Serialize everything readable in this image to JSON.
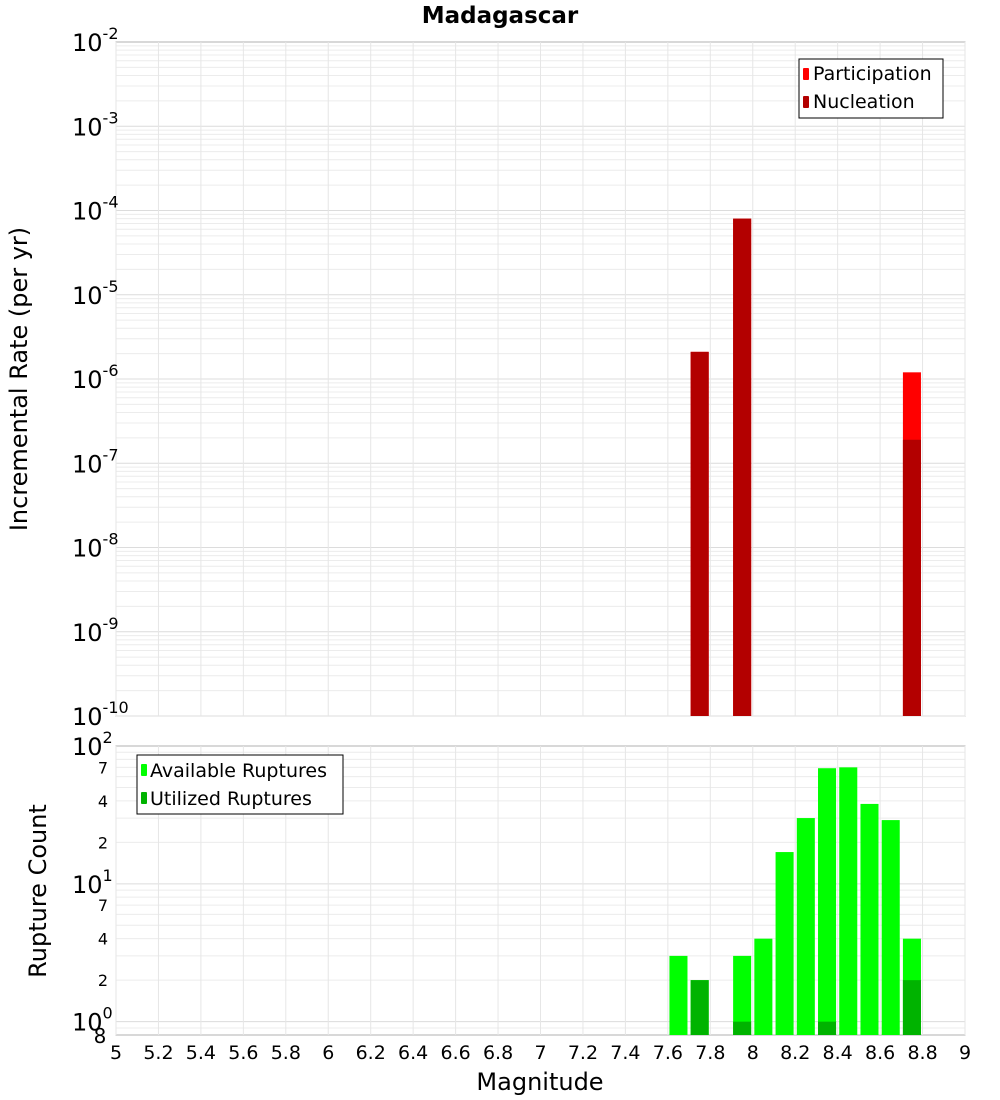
{
  "chart_data": [
    {
      "type": "bar",
      "title": "Madagascar",
      "ylabel": "Incremental Rate (per yr)",
      "xlabel": "",
      "xlim": [
        5,
        9
      ],
      "ylim": [
        1e-10,
        0.01
      ],
      "yscale": "log",
      "y_tick_labels": [
        {
          "base": "10",
          "exp": "-10",
          "value": 1e-10
        },
        {
          "base": "10",
          "exp": "-9",
          "value": 1e-09
        },
        {
          "base": "10",
          "exp": "-8",
          "value": 1e-08
        },
        {
          "base": "10",
          "exp": "-7",
          "value": 1e-07
        },
        {
          "base": "10",
          "exp": "-6",
          "value": 1e-06
        },
        {
          "base": "10",
          "exp": "-5",
          "value": 1e-05
        },
        {
          "base": "10",
          "exp": "-4",
          "value": 0.0001
        },
        {
          "base": "10",
          "exp": "-3",
          "value": 0.001
        },
        {
          "base": "10",
          "exp": "-2",
          "value": 0.01
        }
      ],
      "legend_position": "top-right",
      "grid": true,
      "series": [
        {
          "name": "Participation",
          "color": "#ff0000",
          "points": [
            {
              "x": 7.75,
              "y": 2.1e-06
            },
            {
              "x": 7.95,
              "y": 8e-05
            },
            {
              "x": 8.75,
              "y": 1.2e-06
            }
          ]
        },
        {
          "name": "Nucleation",
          "color": "#b30000",
          "points": [
            {
              "x": 7.75,
              "y": 2.1e-06
            },
            {
              "x": 7.95,
              "y": 8e-05
            },
            {
              "x": 8.75,
              "y": 1.9e-07
            }
          ]
        }
      ]
    },
    {
      "type": "bar",
      "title": "",
      "ylabel": "Rupture Count",
      "xlabel": "Magnitude",
      "xlim": [
        5,
        9
      ],
      "ylim": [
        0.8,
        100
      ],
      "yscale": "log",
      "x_ticks": [
        "5",
        "5.2",
        "5.4",
        "5.6",
        "5.8",
        "6",
        "6.2",
        "6.4",
        "6.6",
        "6.8",
        "7",
        "7.2",
        "7.4",
        "7.6",
        "7.8",
        "8",
        "8.2",
        "8.4",
        "8.6",
        "8.8",
        "9"
      ],
      "y_major_labels": [
        {
          "base": "10",
          "exp": "0",
          "value": 1
        },
        {
          "base": "10",
          "exp": "1",
          "value": 10
        },
        {
          "base": "10",
          "exp": "2",
          "value": 100
        }
      ],
      "y_minor_labels": [
        {
          "label": "8",
          "value": 0.8
        },
        {
          "label": "2",
          "value": 2
        },
        {
          "label": "4",
          "value": 4
        },
        {
          "label": "7",
          "value": 7
        },
        {
          "label": "2",
          "value": 20
        },
        {
          "label": "4",
          "value": 40
        },
        {
          "label": "7",
          "value": 70
        }
      ],
      "legend_position": "top-left",
      "grid": true,
      "series": [
        {
          "name": "Available Ruptures",
          "color": "#00ff00",
          "points": [
            {
              "x": 7.65,
              "y": 3
            },
            {
              "x": 7.75,
              "y": 2
            },
            {
              "x": 7.95,
              "y": 3
            },
            {
              "x": 8.05,
              "y": 4
            },
            {
              "x": 8.15,
              "y": 17
            },
            {
              "x": 8.25,
              "y": 30
            },
            {
              "x": 8.35,
              "y": 69
            },
            {
              "x": 8.45,
              "y": 70
            },
            {
              "x": 8.55,
              "y": 38
            },
            {
              "x": 8.65,
              "y": 29
            },
            {
              "x": 8.75,
              "y": 4
            }
          ]
        },
        {
          "name": "Utilized Ruptures",
          "color": "#00b300",
          "points": [
            {
              "x": 7.75,
              "y": 2
            },
            {
              "x": 7.95,
              "y": 1
            },
            {
              "x": 8.35,
              "y": 1
            },
            {
              "x": 8.75,
              "y": 2
            }
          ]
        }
      ]
    }
  ]
}
